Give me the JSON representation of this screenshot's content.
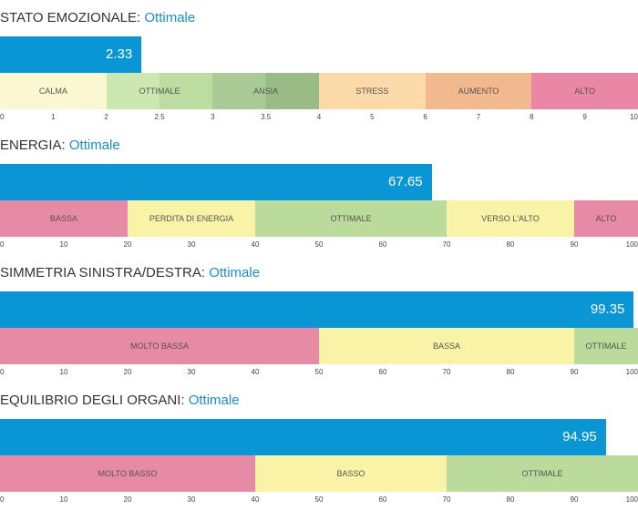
{
  "gauges": [
    {
      "label": "STATO EMOZIONALE:",
      "status": "Ottimale",
      "value": 2.33,
      "value_label": "2.33",
      "scale": [
        0,
        10
      ],
      "zones": [
        {
          "label": "CALMA",
          "from": 0,
          "to": 2,
          "color": "#fbf7d0"
        },
        {
          "label": "OTTIMALE",
          "from": 2,
          "to": 3,
          "color": "#cde7b0",
          "shade_split": 2.5,
          "shade_color": "#bcdca0"
        },
        {
          "label": "ANSIA",
          "from": 3,
          "to": 4,
          "color": "#aacb96",
          "shade_split": 3.5,
          "shade_color": "#99bc86"
        },
        {
          "label": "STRESS",
          "from": 4,
          "to": 6,
          "color": "#fbd9a8"
        },
        {
          "label": "AUMENTO",
          "from": 6,
          "to": 8,
          "color": "#f1b98d"
        },
        {
          "label": "ALTO",
          "from": 8,
          "to": 10,
          "color": "#e987a4"
        }
      ],
      "ticks": [
        {
          "label": "0",
          "value": 0
        },
        {
          "label": "1",
          "value": 1
        },
        {
          "label": "2",
          "value": 2
        },
        {
          "label": "2.5",
          "value": 2.5
        },
        {
          "label": "3",
          "value": 3
        },
        {
          "label": "3.5",
          "value": 3.5
        },
        {
          "label": "4",
          "value": 4
        },
        {
          "label": "5",
          "value": 5
        },
        {
          "label": "6",
          "value": 6
        },
        {
          "label": "7",
          "value": 7
        },
        {
          "label": "8",
          "value": 8
        },
        {
          "label": "9",
          "value": 9
        },
        {
          "label": "10",
          "value": 10
        }
      ]
    },
    {
      "label": "ENERGIA:",
      "status": "Ottimale",
      "value": 67.65,
      "value_label": "67.65",
      "scale": [
        0,
        100
      ],
      "zones": [
        {
          "label": "BASSA",
          "from": 0,
          "to": 20,
          "color": "#e78aa6"
        },
        {
          "label": "PERDITA DI ENERGIA",
          "from": 20,
          "to": 40,
          "color": "#f9f3a8"
        },
        {
          "label": "OTTIMALE",
          "from": 40,
          "to": 70,
          "color": "#badb9c"
        },
        {
          "label": "VERSO L'ALTO",
          "from": 70,
          "to": 90,
          "color": "#f9f3a8"
        },
        {
          "label": "ALTO",
          "from": 90,
          "to": 100,
          "color": "#e78aa6"
        }
      ],
      "ticks": [
        {
          "label": "0",
          "value": 0
        },
        {
          "label": "10",
          "value": 10
        },
        {
          "label": "20",
          "value": 20
        },
        {
          "label": "30",
          "value": 30
        },
        {
          "label": "40",
          "value": 40
        },
        {
          "label": "50",
          "value": 50
        },
        {
          "label": "60",
          "value": 60
        },
        {
          "label": "70",
          "value": 70
        },
        {
          "label": "80",
          "value": 80
        },
        {
          "label": "90",
          "value": 90
        },
        {
          "label": "100",
          "value": 100
        }
      ]
    },
    {
      "label": "SIMMETRIA SINISTRA/DESTRA:",
      "status": "Ottimale",
      "value": 99.35,
      "value_label": "99.35",
      "scale": [
        0,
        100
      ],
      "zones": [
        {
          "label": "MOLTO BASSA",
          "from": 0,
          "to": 50,
          "color": "#e78aa6"
        },
        {
          "label": "BASSA",
          "from": 50,
          "to": 90,
          "color": "#f9f3a8"
        },
        {
          "label": "OTTIMALE",
          "from": 90,
          "to": 100,
          "color": "#badb9c"
        }
      ],
      "ticks": [
        {
          "label": "0",
          "value": 0
        },
        {
          "label": "10",
          "value": 10
        },
        {
          "label": "20",
          "value": 20
        },
        {
          "label": "30",
          "value": 30
        },
        {
          "label": "40",
          "value": 40
        },
        {
          "label": "50",
          "value": 50
        },
        {
          "label": "60",
          "value": 60
        },
        {
          "label": "70",
          "value": 70
        },
        {
          "label": "80",
          "value": 80
        },
        {
          "label": "90",
          "value": 90
        },
        {
          "label": "100",
          "value": 100
        }
      ]
    },
    {
      "label": "EQUILIBRIO DEGLI ORGANI:",
      "status": "Ottimale",
      "value": 94.95,
      "value_label": "94.95",
      "scale": [
        0,
        100
      ],
      "zones": [
        {
          "label": "MOLTO BASSO",
          "from": 0,
          "to": 40,
          "color": "#e78aa6"
        },
        {
          "label": "BASSO",
          "from": 40,
          "to": 70,
          "color": "#f9f3a8"
        },
        {
          "label": "OTTIMALE",
          "from": 70,
          "to": 100,
          "color": "#badb9c"
        }
      ],
      "ticks": [
        {
          "label": "0",
          "value": 0
        },
        {
          "label": "10",
          "value": 10
        },
        {
          "label": "20",
          "value": 20
        },
        {
          "label": "30",
          "value": 30
        },
        {
          "label": "40",
          "value": 40
        },
        {
          "label": "50",
          "value": 50
        },
        {
          "label": "60",
          "value": 60
        },
        {
          "label": "70",
          "value": 70
        },
        {
          "label": "80",
          "value": 80
        },
        {
          "label": "90",
          "value": 90
        },
        {
          "label": "100",
          "value": 100
        }
      ]
    }
  ],
  "colors": {
    "value_bar": "#0a96d4",
    "status_text": "#1a8fc9"
  }
}
